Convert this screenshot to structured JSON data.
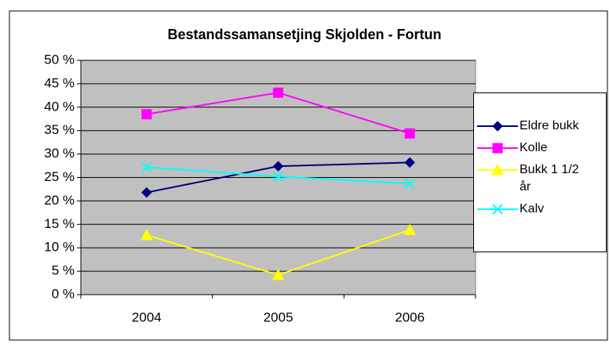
{
  "chart_data": {
    "type": "line",
    "title": "Bestandssamansetjing Skjolden - Fortun",
    "categories": [
      "2004",
      "2005",
      "2006"
    ],
    "series": [
      {
        "name": "Eldre bukk",
        "color": "#000080",
        "marker": "diamond",
        "values": [
          21.8,
          27.4,
          28.2
        ]
      },
      {
        "name": "Kolle",
        "color": "#ff00ff",
        "marker": "square",
        "values": [
          38.5,
          43.1,
          34.4
        ]
      },
      {
        "name": "Bukk 1 1/2 år",
        "color": "#ffff00",
        "marker": "triangle",
        "values": [
          12.7,
          4.2,
          13.8
        ]
      },
      {
        "name": "Kalv",
        "color": "#00ffff",
        "marker": "x",
        "values": [
          27.2,
          25.2,
          23.7
        ]
      }
    ],
    "ylim": [
      0,
      50
    ],
    "yticks": [
      {
        "value": 0,
        "label": "0 %"
      },
      {
        "value": 5,
        "label": "5 %"
      },
      {
        "value": 10,
        "label": "10 %"
      },
      {
        "value": 15,
        "label": "15 %"
      },
      {
        "value": 20,
        "label": "20 %"
      },
      {
        "value": 25,
        "label": "25 %"
      },
      {
        "value": 30,
        "label": "30 %"
      },
      {
        "value": 35,
        "label": "35 %"
      },
      {
        "value": 40,
        "label": "40 %"
      },
      {
        "value": 45,
        "label": "45 %"
      },
      {
        "value": 50,
        "label": "50 %"
      }
    ],
    "grid": true,
    "plot_background": "#c0c0c0",
    "legend": "right"
  }
}
